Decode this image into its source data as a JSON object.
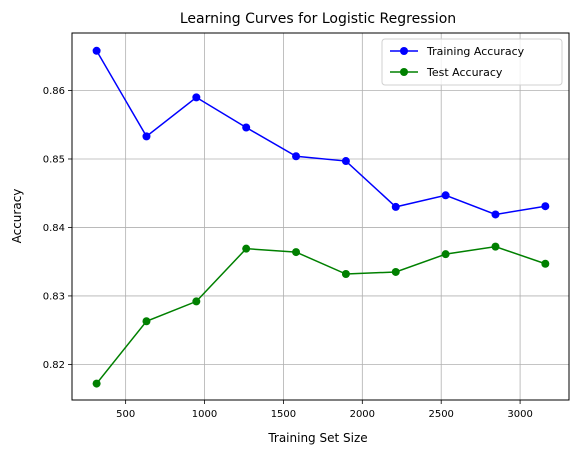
{
  "chart_data": {
    "type": "line",
    "title": "Learning Curves for Logistic Regression",
    "xlabel": "Training Set Size",
    "ylabel": "Accuracy",
    "xlim": [
      160,
      3310
    ],
    "ylim": [
      0.8148,
      0.8684
    ],
    "xticks": [
      500,
      1000,
      1500,
      2000,
      2500,
      3000
    ],
    "yticks": [
      0.82,
      0.83,
      0.84,
      0.85,
      0.86
    ],
    "ytick_labels": [
      "0.82",
      "0.83",
      "0.84",
      "0.85",
      "0.86"
    ],
    "grid": true,
    "legend": "top-right",
    "x": [
      316,
      632,
      948,
      1264,
      1580,
      1896,
      2212,
      2528,
      2844,
      3160
    ],
    "series": [
      {
        "name": "Training Accuracy",
        "color": "#0000ff",
        "values": [
          0.8658,
          0.8533,
          0.859,
          0.8546,
          0.8504,
          0.8497,
          0.843,
          0.8447,
          0.8419,
          0.8431
        ]
      },
      {
        "name": "Test Accuracy",
        "color": "#008000",
        "values": [
          0.8172,
          0.8263,
          0.8292,
          0.8369,
          0.8364,
          0.8332,
          0.8335,
          0.8361,
          0.8372,
          0.8347
        ]
      }
    ]
  }
}
